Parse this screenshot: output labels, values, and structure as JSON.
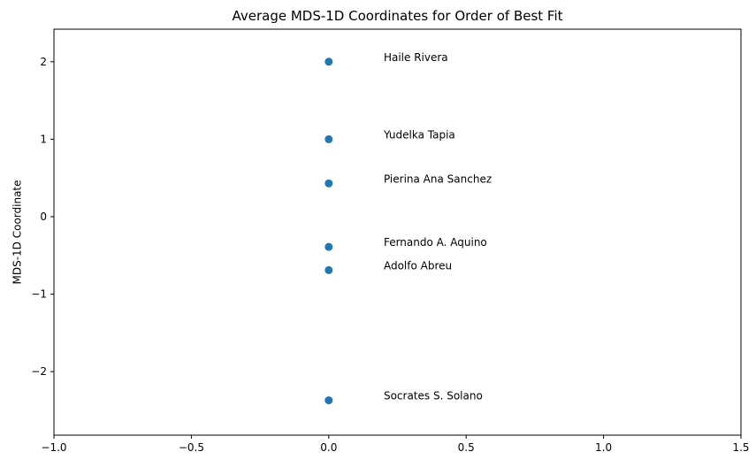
{
  "chart_data": {
    "type": "scatter",
    "title": "Average MDS-1D Coordinates for Order of Best Fit",
    "xlabel": "",
    "ylabel": "MDS-1D Coordinate",
    "xlim": [
      -1.0,
      1.5
    ],
    "ylim": [
      -2.82,
      2.42
    ],
    "x_ticks": [
      -1.0,
      -0.5,
      0.0,
      0.5,
      1.0,
      1.5
    ],
    "x_tick_labels": [
      "−1.0",
      "−0.5",
      "0.0",
      "0.5",
      "1.0",
      "1.5"
    ],
    "y_ticks": [
      2,
      1,
      0,
      -1,
      -2
    ],
    "y_tick_labels": [
      "2",
      "1",
      "0",
      "−1",
      "−2"
    ],
    "grid": false,
    "marker_color": "#1f77b4",
    "points": [
      {
        "x": 0,
        "y": 2.0,
        "label": "Haile Rivera"
      },
      {
        "x": 0,
        "y": 1.0,
        "label": "Yudelka Tapia"
      },
      {
        "x": 0,
        "y": 0.43,
        "label": "Pierina Ana Sanchez"
      },
      {
        "x": 0,
        "y": -0.39,
        "label": "Fernando A. Aquino"
      },
      {
        "x": 0,
        "y": -0.69,
        "label": "Adolfo Abreu"
      },
      {
        "x": 0,
        "y": -2.37,
        "label": "Socrates S. Solano"
      }
    ]
  }
}
